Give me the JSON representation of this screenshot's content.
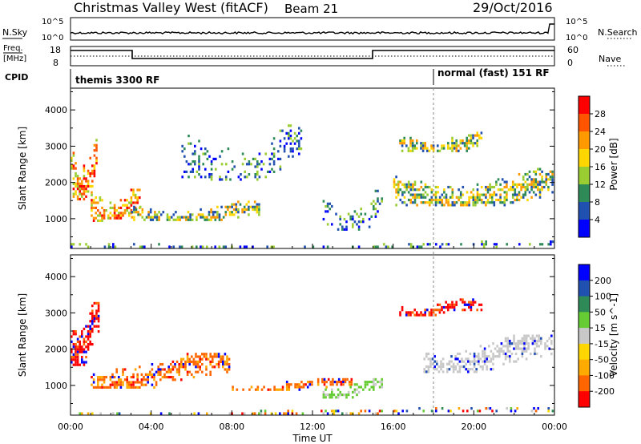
{
  "header": {
    "station": "Christmas Valley West (fitACF)",
    "beam": "Beam 21",
    "date": "29/Oct/2016"
  },
  "top_panels": {
    "nsky_label": "N.Sky",
    "nsearch_label": "N.Search",
    "nsky_ticks": [
      "10^5",
      "10^0"
    ],
    "nsky_right_ticks": [
      "10^5",
      "10^0"
    ],
    "freq_label_1": "Freq.",
    "freq_label_2": "[MHz]",
    "freq_ticks": [
      "18",
      "8"
    ],
    "nave_label": "Nave",
    "nave_ticks": [
      "60",
      "0"
    ],
    "cpid_label": "CPID",
    "cpid_segments": [
      "themis 3300 RF",
      "normal (fast) 151 RF"
    ]
  },
  "chart_data": [
    {
      "type": "heatmap",
      "name": "Power",
      "ylabel": "Slant Range [km]",
      "yticks": [
        1000,
        2000,
        3000,
        4000
      ],
      "ylim": [
        180,
        4600
      ],
      "colorbar_label": "Power [dB]",
      "colorbar_ticks": [
        "28",
        "24",
        "20",
        "16",
        "12",
        "8",
        "4"
      ],
      "colors": [
        "#0000ff",
        "#2050b0",
        "#2e8b57",
        "#9acd32",
        "#ffd700",
        "#ff9900",
        "#ff5500",
        "#ff0000"
      ],
      "regions": [
        {
          "t0": 0.0,
          "t1": 1.4,
          "r0": 1500,
          "r1": 3200,
          "level": "high"
        },
        {
          "t0": 1.0,
          "t1": 3.5,
          "r0": 900,
          "r1": 1900,
          "level": "high"
        },
        {
          "t0": 3.0,
          "t1": 9.5,
          "r0": 900,
          "r1": 1500,
          "level": "mid"
        },
        {
          "t0": 5.5,
          "t1": 11.5,
          "r0": 2000,
          "r1": 3600,
          "level": "low"
        },
        {
          "t0": 12.5,
          "t1": 15.5,
          "r0": 600,
          "r1": 1800,
          "level": "low"
        },
        {
          "t0": 16.3,
          "t1": 20.5,
          "r0": 2800,
          "r1": 3400,
          "level": "mid"
        },
        {
          "t0": 16.0,
          "t1": 24.0,
          "r0": 1300,
          "r1": 2400,
          "level": "mid"
        },
        {
          "t0": 0.0,
          "t1": 24.0,
          "r0": 180,
          "r1": 400,
          "level": "low"
        }
      ]
    },
    {
      "type": "heatmap",
      "name": "Velocity",
      "ylabel": "Slant Range [km]",
      "xlabel": "Time UT",
      "xticks": [
        "00:00",
        "04:00",
        "08:00",
        "12:00",
        "16:00",
        "20:00",
        "00:00"
      ],
      "yticks": [
        1000,
        2000,
        3000,
        4000
      ],
      "ylim": [
        180,
        4600
      ],
      "colorbar_label": "Velocity [m s^-1]",
      "colorbar_ticks": [
        "200",
        "100",
        "50",
        "15",
        "-15",
        "-50",
        "-100",
        "-200"
      ],
      "colors": [
        "#ff0000",
        "#ff6600",
        "#ffaa00",
        "#ffd700",
        "#c8c8c8",
        "#66cc33",
        "#2e8b57",
        "#2050b0",
        "#0000ff"
      ],
      "regions": [
        {
          "t0": 0.0,
          "t1": 1.5,
          "r0": 1500,
          "r1": 3300,
          "level": "red"
        },
        {
          "t0": 1.0,
          "t1": 8.0,
          "r0": 900,
          "r1": 1900,
          "level": "orange"
        },
        {
          "t0": 8.0,
          "t1": 14.0,
          "r0": 800,
          "r1": 1200,
          "level": "orange"
        },
        {
          "t0": 12.5,
          "t1": 15.5,
          "r0": 600,
          "r1": 1200,
          "level": "green"
        },
        {
          "t0": 16.3,
          "t1": 20.5,
          "r0": 2900,
          "r1": 3400,
          "level": "red"
        },
        {
          "t0": 17.5,
          "t1": 24.0,
          "r0": 1300,
          "r1": 2400,
          "level": "gray"
        },
        {
          "t0": 0.0,
          "t1": 24.0,
          "r0": 180,
          "r1": 400,
          "level": "mixed"
        }
      ]
    }
  ]
}
